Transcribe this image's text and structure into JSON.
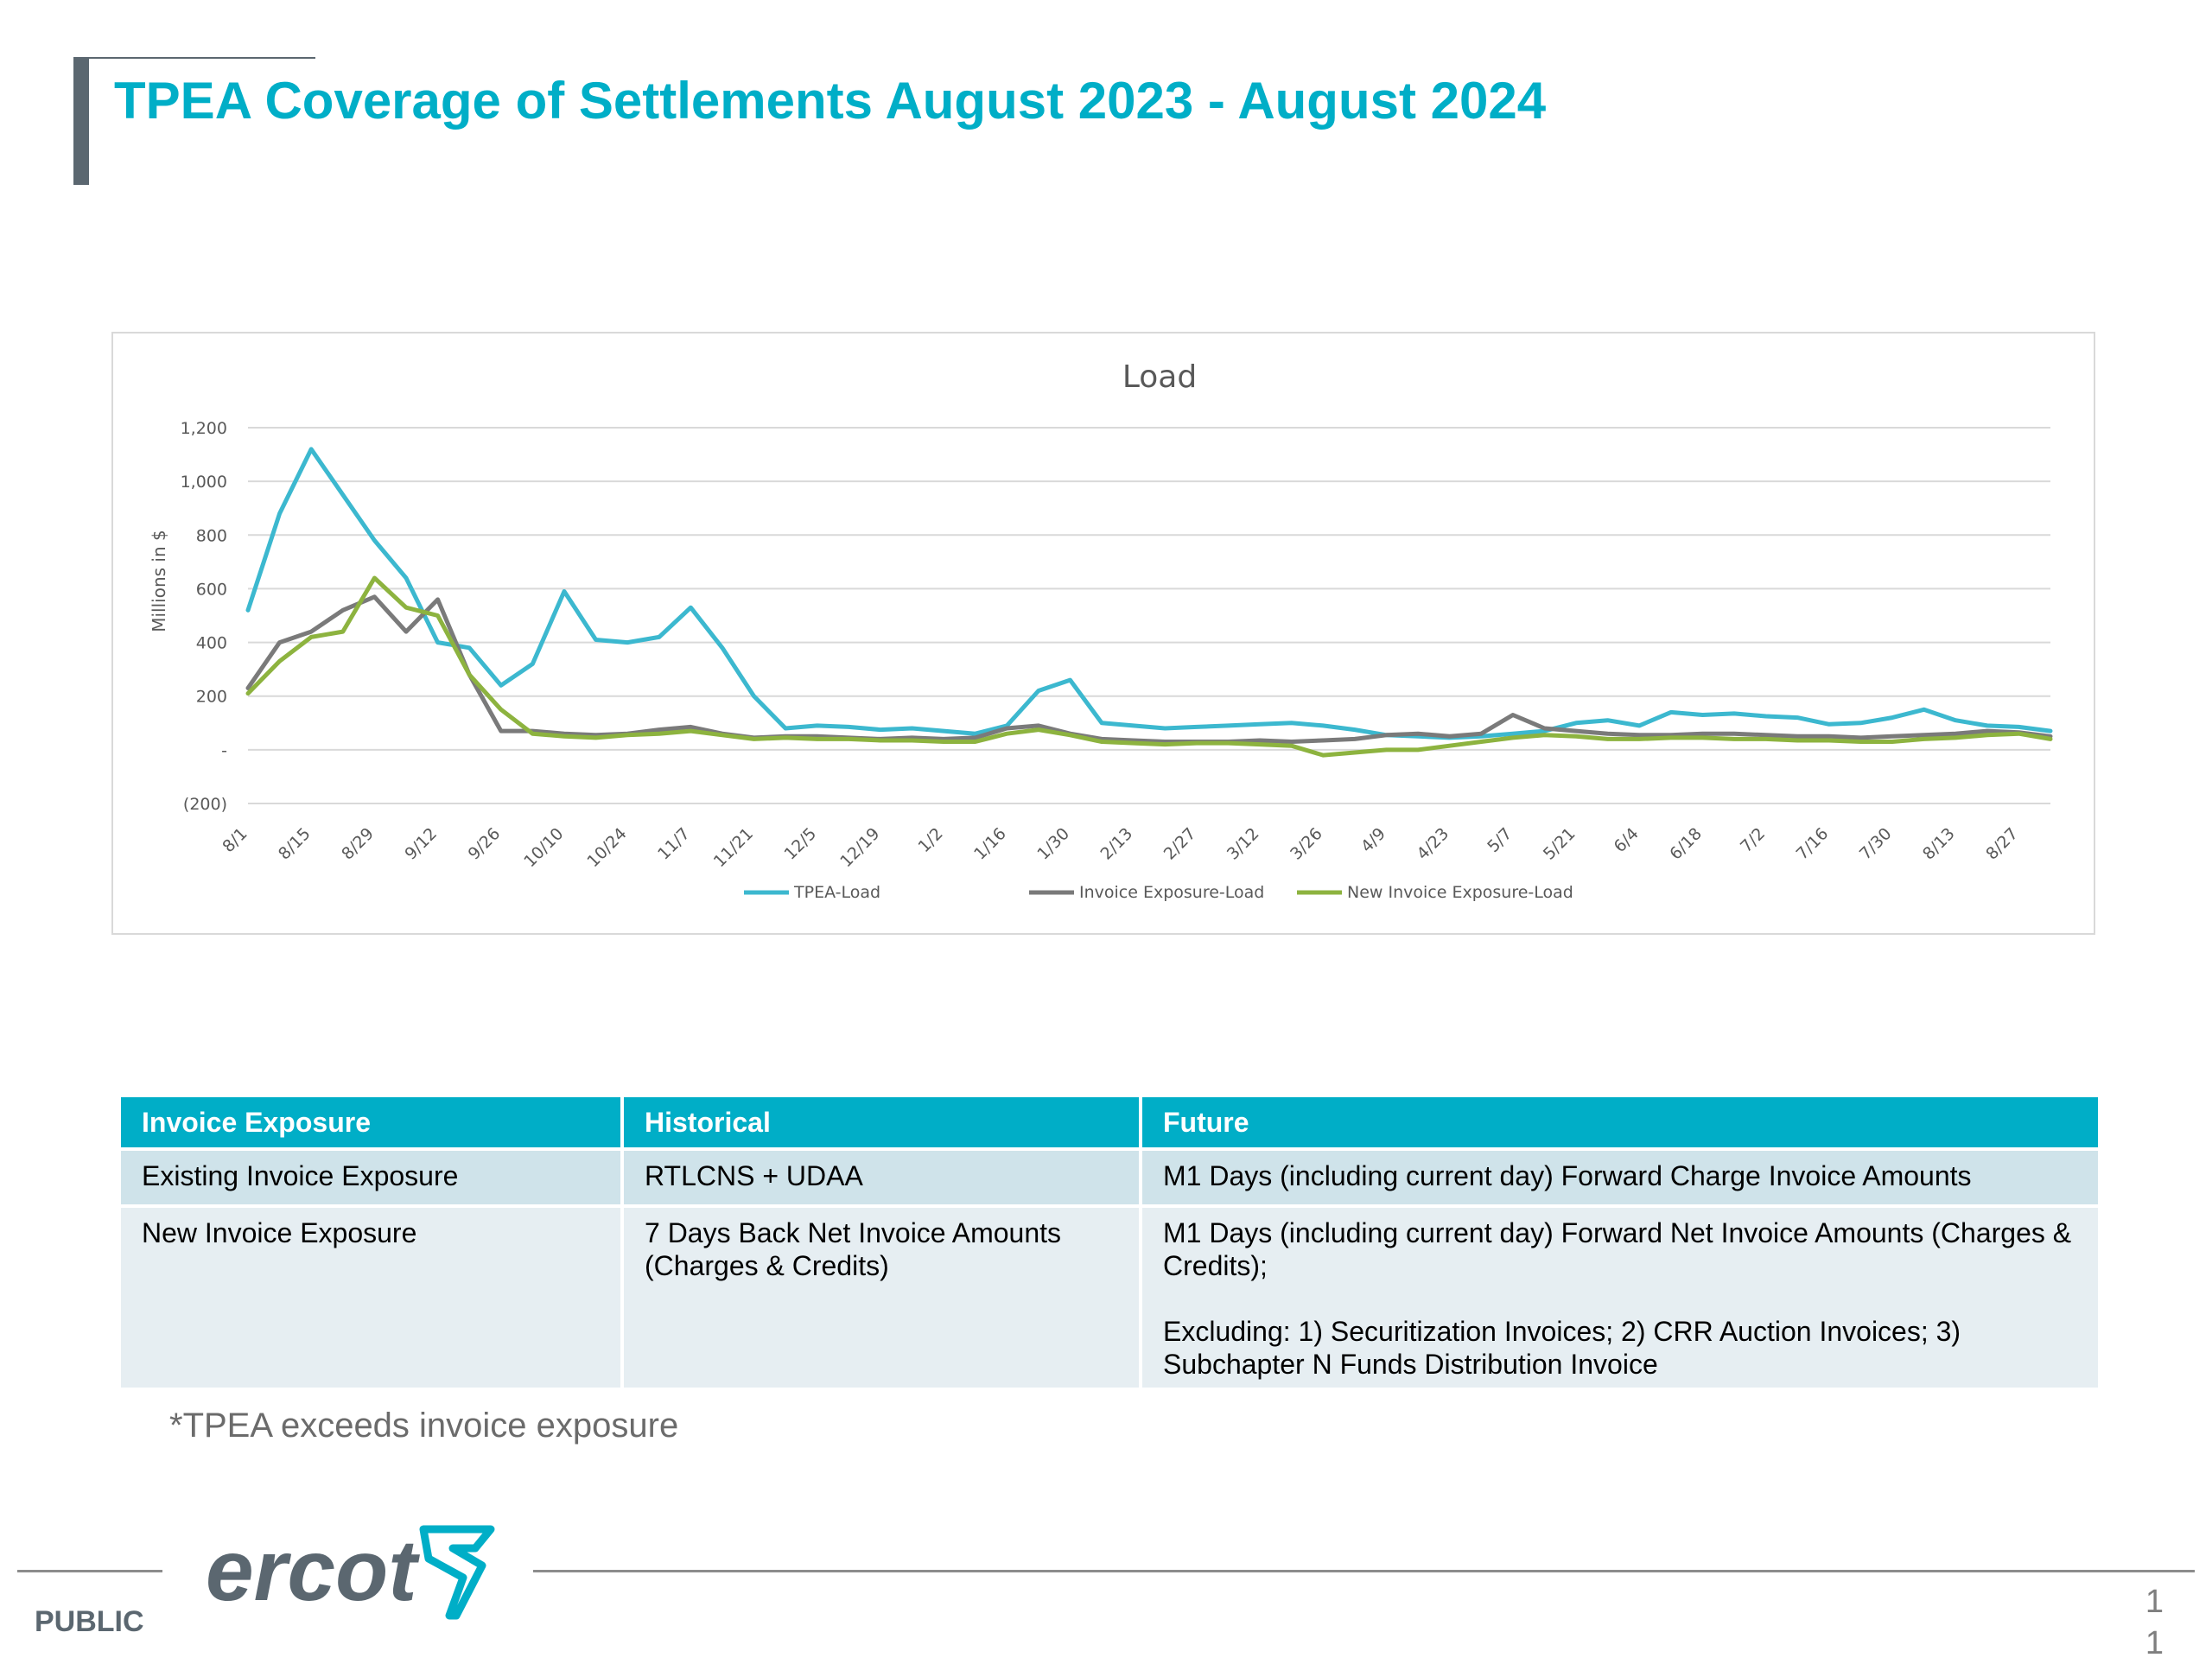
{
  "slide": {
    "title": "TPEA Coverage of Settlements August 2023 - August 2024",
    "note": "*TPEA exceeds invoice exposure",
    "footer_label": "PUBLIC",
    "page_number": "1",
    "page_number_2": "1",
    "logo_text": "ercot",
    "accent_color": "#00aec7",
    "logo_color": "#5b6770"
  },
  "chart_data": {
    "type": "line",
    "title": "Load",
    "xlabel": "",
    "ylabel": "Millions in $",
    "ylim": [
      -200,
      1200
    ],
    "yticks": [
      -200,
      0,
      200,
      400,
      600,
      800,
      1000,
      1200
    ],
    "ytick_labels": [
      "(200)",
      "-",
      "200",
      "400",
      "600",
      "800",
      "1,000",
      "1,200"
    ],
    "x": [
      "8/1",
      "8/8",
      "8/15",
      "8/22",
      "8/29",
      "9/5",
      "9/12",
      "9/19",
      "9/26",
      "10/3",
      "10/10",
      "10/17",
      "10/24",
      "10/31",
      "11/7",
      "11/14",
      "11/21",
      "11/28",
      "12/5",
      "12/12",
      "12/19",
      "12/26",
      "1/2",
      "1/9",
      "1/16",
      "1/23",
      "1/30",
      "2/6",
      "2/13",
      "2/20",
      "2/27",
      "3/5",
      "3/12",
      "3/19",
      "3/26",
      "4/2",
      "4/9",
      "4/16",
      "4/23",
      "4/30",
      "5/7",
      "5/14",
      "5/21",
      "5/28",
      "6/4",
      "6/11",
      "6/18",
      "6/25",
      "7/2",
      "7/9",
      "7/16",
      "7/23",
      "7/30",
      "8/6",
      "8/13",
      "8/20",
      "8/27",
      "9/3"
    ],
    "x_tick_labels": [
      "8/1",
      "8/15",
      "8/29",
      "9/12",
      "9/26",
      "10/10",
      "10/24",
      "11/7",
      "11/21",
      "12/5",
      "12/19",
      "1/2",
      "1/16",
      "1/30",
      "2/13",
      "2/27",
      "3/12",
      "3/26",
      "4/9",
      "4/23",
      "5/7",
      "5/21",
      "6/4",
      "6/18",
      "7/2",
      "7/16",
      "7/30",
      "8/13",
      "8/27"
    ],
    "grid": true,
    "legend_position": "bottom",
    "series": [
      {
        "name": "TPEA-Load",
        "color": "#3cb8cf",
        "values": [
          520,
          880,
          1120,
          950,
          780,
          640,
          400,
          380,
          240,
          320,
          590,
          410,
          400,
          420,
          530,
          380,
          200,
          80,
          90,
          85,
          75,
          80,
          70,
          60,
          90,
          220,
          260,
          100,
          90,
          80,
          85,
          90,
          95,
          100,
          90,
          75,
          55,
          50,
          45,
          50,
          60,
          70,
          100,
          110,
          90,
          140,
          130,
          135,
          125,
          120,
          95,
          100,
          120,
          150,
          110,
          90,
          85,
          70
        ]
      },
      {
        "name": "Invoice Exposure-Load",
        "color": "#7a7a7a",
        "values": [
          230,
          400,
          440,
          520,
          570,
          440,
          560,
          280,
          70,
          70,
          60,
          55,
          60,
          75,
          85,
          60,
          45,
          50,
          50,
          45,
          40,
          45,
          40,
          45,
          80,
          90,
          60,
          40,
          35,
          30,
          30,
          30,
          35,
          30,
          35,
          40,
          55,
          60,
          50,
          60,
          130,
          80,
          70,
          60,
          55,
          55,
          60,
          60,
          55,
          50,
          50,
          45,
          50,
          55,
          60,
          70,
          65,
          50
        ]
      },
      {
        "name": "New Invoice Exposure-Load",
        "color": "#8db33f",
        "values": [
          210,
          330,
          420,
          440,
          640,
          530,
          500,
          280,
          150,
          60,
          50,
          45,
          55,
          60,
          70,
          55,
          40,
          45,
          40,
          40,
          35,
          35,
          30,
          30,
          60,
          75,
          55,
          30,
          25,
          20,
          25,
          25,
          20,
          15,
          -20,
          -10,
          0,
          0,
          15,
          30,
          45,
          55,
          50,
          40,
          40,
          45,
          45,
          40,
          40,
          35,
          35,
          30,
          30,
          40,
          45,
          55,
          60,
          40
        ]
      }
    ]
  },
  "table": {
    "headers": [
      "Invoice Exposure",
      "Historical",
      "Future"
    ],
    "rows": [
      [
        "Existing Invoice Exposure",
        "RTLCNS + UDAA",
        "M1 Days (including current day)  Forward Charge Invoice Amounts"
      ],
      [
        "New Invoice Exposure",
        "7 Days Back Net Invoice Amounts (Charges & Credits)",
        "M1 Days (including current day)  Forward Net Invoice Amounts (Charges & Credits);"
      ]
    ],
    "future_extra": "Excluding: 1) Securitization Invoices; 2) CRR Auction Invoices; 3) Subchapter N Funds Distribution Invoice"
  }
}
